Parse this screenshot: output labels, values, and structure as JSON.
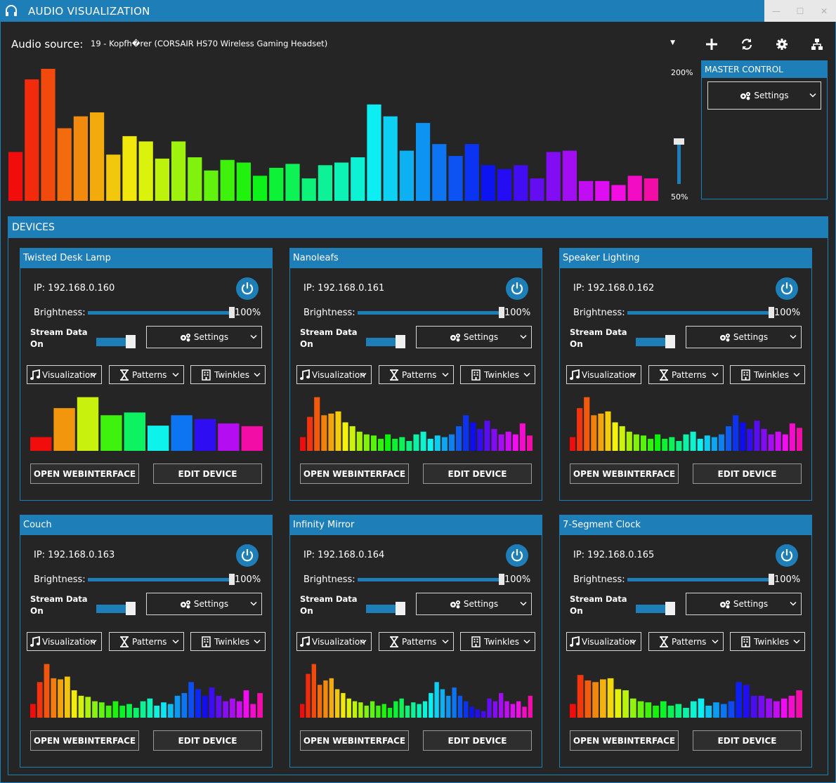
{
  "window": {
    "title": "AUDIO VISUALIZATION",
    "minimize": "—",
    "maximize": "☐",
    "close": "✕"
  },
  "source": {
    "label": "Audio source:",
    "value": "19 - Kopfh�rer (CORSAIR HS70 Wireless Gaming Headset)"
  },
  "gain": {
    "max_label": "200%",
    "min_label": "50%",
    "current": 0.95
  },
  "spectrum": {
    "values": [
      0.37,
      0.92,
      1.0,
      0.55,
      0.64,
      0.67,
      0.35,
      0.49,
      0.45,
      0.32,
      0.45,
      0.33,
      0.23,
      0.31,
      0.29,
      0.19,
      0.25,
      0.28,
      0.17,
      0.27,
      0.29,
      0.33,
      0.73,
      0.64,
      0.38,
      0.59,
      0.43,
      0.34,
      0.43,
      0.27,
      0.24,
      0.27,
      0.17,
      0.37,
      0.38,
      0.15,
      0.15,
      0.12,
      0.19,
      0.17
    ]
  },
  "master": {
    "title": "MASTER CONTROL",
    "settings_label": "Settings"
  },
  "devices": {
    "title": "DEVICES",
    "brightness_label": "Brightness:",
    "stream_label": "Stream Data",
    "settings_label": "Settings",
    "visualization_label": "Visualization",
    "patterns_label": "Patterns",
    "twinkles_label": "Twinkles",
    "web_label": "OPEN WEBINTERFACE",
    "edit_label": "EDIT DEVICE",
    "list": [
      {
        "name": "Twisted Desk Lamp",
        "ip": "IP: 192.168.0.160",
        "brightness": "100%",
        "stream": "On",
        "bars": [
          0.25,
          0.78,
          0.98,
          0.65,
          0.7,
          0.46,
          0.65,
          0.58,
          0.5,
          0.45
        ]
      },
      {
        "name": "Nanoleafs",
        "ip": "IP: 192.168.0.161",
        "brightness": "100%",
        "stream": "On",
        "bars": [
          0.25,
          0.62,
          0.98,
          0.65,
          0.68,
          0.72,
          0.52,
          0.45,
          0.35,
          0.3,
          0.28,
          0.22,
          0.3,
          0.22,
          0.25,
          0.18,
          0.3,
          0.35,
          0.22,
          0.28,
          0.25,
          0.3,
          0.45,
          0.65,
          0.52,
          0.4,
          0.55,
          0.4,
          0.3,
          0.35,
          0.3,
          0.5,
          0.28
        ]
      },
      {
        "name": "Speaker Lighting",
        "ip": "IP: 192.168.0.162",
        "brightness": "100%",
        "stream": "On",
        "bars": [
          0.25,
          0.78,
          0.98,
          0.65,
          0.68,
          0.72,
          0.52,
          0.45,
          0.35,
          0.3,
          0.28,
          0.22,
          0.3,
          0.22,
          0.25,
          0.18,
          0.3,
          0.35,
          0.22,
          0.28,
          0.25,
          0.3,
          0.45,
          0.65,
          0.52,
          0.4,
          0.55,
          0.4,
          0.3,
          0.35,
          0.3,
          0.5,
          0.42
        ]
      },
      {
        "name": "Couch",
        "ip": "IP: 192.168.0.163",
        "brightness": "100%",
        "stream": "On",
        "bars": [
          0.25,
          0.65,
          0.98,
          0.72,
          0.7,
          0.75,
          0.5,
          0.4,
          0.38,
          0.3,
          0.28,
          0.22,
          0.3,
          0.22,
          0.25,
          0.18,
          0.3,
          0.35,
          0.22,
          0.28,
          0.25,
          0.4,
          0.45,
          0.65,
          0.52,
          0.4,
          0.55,
          0.4,
          0.3,
          0.35,
          0.3,
          0.5,
          0.25,
          0.45
        ]
      },
      {
        "name": "Infinity Mirror",
        "ip": "IP: 192.168.0.164",
        "brightness": "100%",
        "stream": "On",
        "bars": [
          0.25,
          0.8,
          0.98,
          0.6,
          0.68,
          0.72,
          0.52,
          0.45,
          0.35,
          0.3,
          0.28,
          0.22,
          0.3,
          0.22,
          0.25,
          0.18,
          0.3,
          0.35,
          0.22,
          0.28,
          0.25,
          0.3,
          0.45,
          0.65,
          0.52,
          0.4,
          0.55,
          0.4,
          0.3,
          0.2,
          0.15,
          0.12,
          0.35,
          0.3,
          0.45,
          0.3,
          0.25,
          0.3,
          0.2,
          0.4
        ]
      },
      {
        "name": "7-Segment Clock",
        "ip": "IP: 192.168.0.165",
        "brightness": "100%",
        "stream": "On",
        "bars": [
          0.25,
          0.78,
          0.68,
          0.65,
          0.7,
          0.72,
          0.52,
          0.5,
          0.35,
          0.3,
          0.28,
          0.22,
          0.3,
          0.22,
          0.25,
          0.18,
          0.3,
          0.35,
          0.22,
          0.28,
          0.25,
          0.3,
          0.65,
          0.6,
          0.4,
          0.4,
          0.35,
          0.3,
          0.35,
          0.4,
          0.5
        ]
      }
    ]
  }
}
